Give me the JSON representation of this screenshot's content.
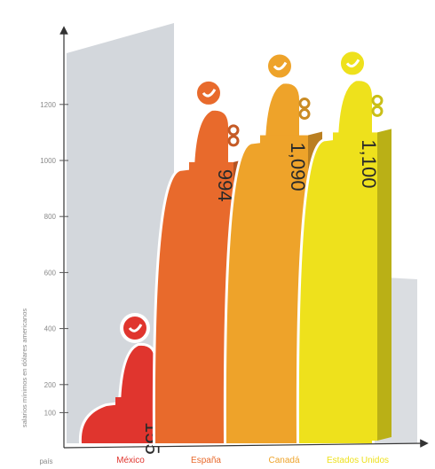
{
  "chart_data": {
    "type": "bar",
    "title": "",
    "ylabel": "salarios mínimos en dólares americanos",
    "y_origin_label": "país",
    "yticks": [
      100,
      200,
      400,
      600,
      800,
      1000,
      1200
    ],
    "ylim": [
      0,
      1300
    ],
    "grid": false,
    "categories": [
      "México",
      "España",
      "Canadá",
      "Estados Unidos"
    ],
    "values": [
      155,
      994,
      1090,
      1100
    ],
    "value_labels": [
      "155",
      "994",
      "1,090",
      "1,100"
    ],
    "colors": [
      "#e0352e",
      "#e86a2c",
      "#eea32a",
      "#eee11c"
    ],
    "background_color": "#d3d7dc"
  }
}
